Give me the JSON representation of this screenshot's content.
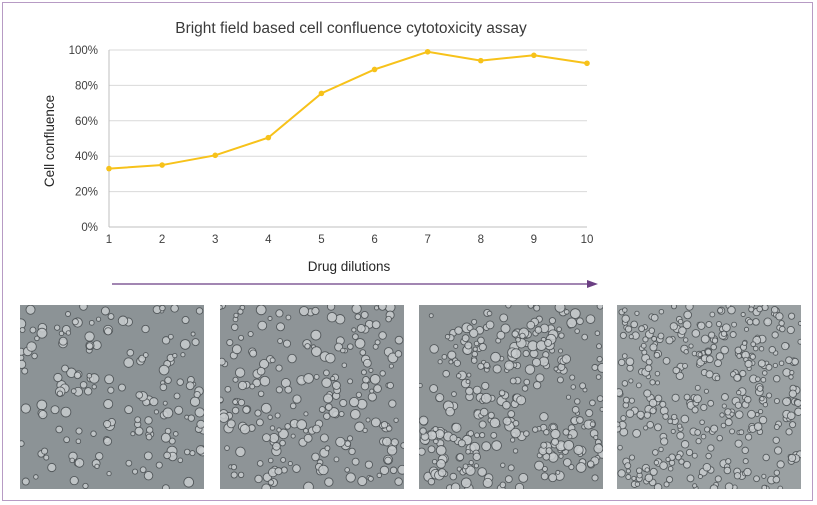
{
  "chart_data": {
    "type": "line",
    "title": "Bright field based cell confluence cytotoxicity assay",
    "xlabel": "Drug dilutions",
    "ylabel": "Cell confluence",
    "x": [
      "1",
      "2",
      "3",
      "4",
      "5",
      "6",
      "7",
      "8",
      "9",
      "10"
    ],
    "series": [
      {
        "values": [
          33,
          35,
          40.5,
          50.5,
          75.5,
          89,
          99,
          94,
          97,
          92.5
        ]
      }
    ],
    "ylim": [
      0,
      100
    ],
    "yticks": [
      "0%",
      "20%",
      "40%",
      "60%",
      "80%",
      "100%"
    ],
    "grid": true,
    "legend": "none",
    "colors": {
      "line": "#f7c21a",
      "grid": "#d9d9d9",
      "arrow": "#6b3f83"
    }
  },
  "images": {
    "panels": [
      {
        "icon": "micrograph-sparse-cells",
        "density": 0.35,
        "bg": "#8c9396"
      },
      {
        "icon": "micrograph-medium-cells",
        "density": 0.55,
        "bg": "#8e9497"
      },
      {
        "icon": "micrograph-clustered-cells",
        "density": 0.85,
        "bg": "#8f9597"
      },
      {
        "icon": "micrograph-confluent-cells",
        "density": 1.0,
        "bg": "#9aa0a2"
      }
    ]
  }
}
